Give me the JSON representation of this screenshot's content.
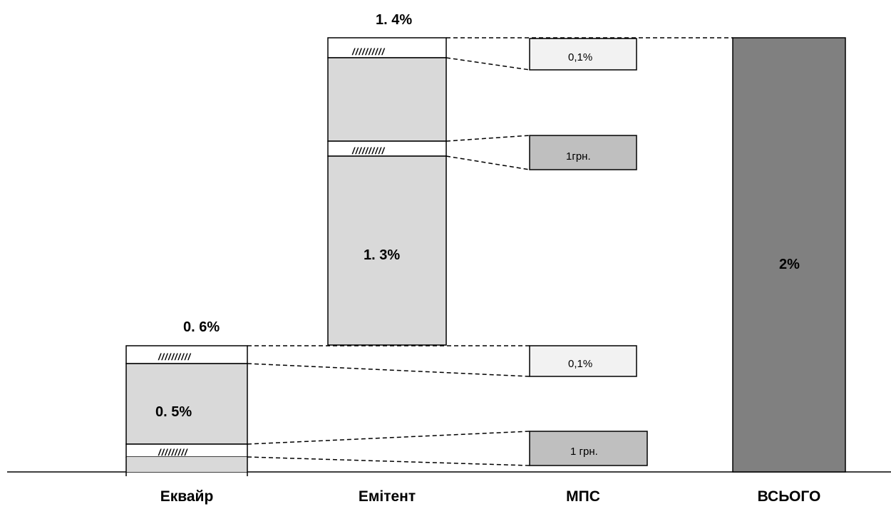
{
  "categories": [
    "Еквайр",
    "Емітент",
    "МПС",
    "ВСЬОГО"
  ],
  "colors": {
    "light": "#d9d9d9",
    "lighter": "#f2f2f2",
    "mid": "#bfbfbf",
    "dark": "#808080",
    "line": "#000000"
  },
  "acquirer": {
    "top_label": "0. 6%",
    "main_label": "0. 5%",
    "hatch_top": "//////////",
    "hatch_bottom": "/////////"
  },
  "issuer": {
    "top_label": "1. 4%",
    "main_label": "1. 3%",
    "hatch_top": "//////////",
    "hatch_mid": "//////////"
  },
  "mps": {
    "box1": "0,1%",
    "box2": "1грн.",
    "box3": "0,1%",
    "box4": "1 грн."
  },
  "total": {
    "label": "2%"
  }
}
